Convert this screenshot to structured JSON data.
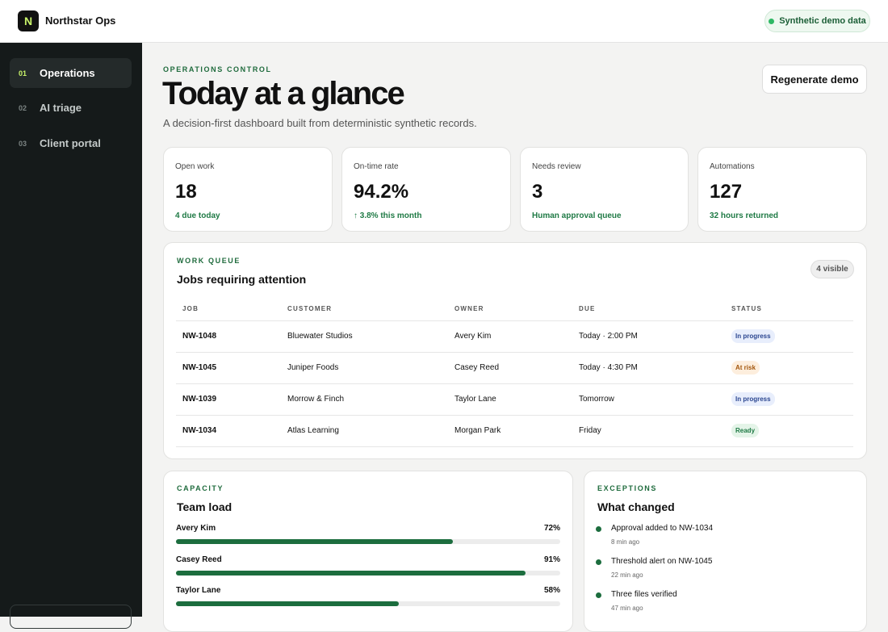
{
  "app": {
    "logo": "N",
    "name": "Northstar Ops",
    "badge": "Synthetic demo data"
  },
  "nav": [
    {
      "index": "01",
      "label": "Operations"
    },
    {
      "index": "02",
      "label": "AI triage"
    },
    {
      "index": "03",
      "label": "Client portal"
    }
  ],
  "header": {
    "eyebrow": "OPERATIONS CONTROL",
    "title": "Today at a glance",
    "subtitle": "A decision-first dashboard built from deterministic synthetic records.",
    "action": "Regenerate demo"
  },
  "kpis": [
    {
      "label": "Open work",
      "value": "18",
      "note": "4 due today"
    },
    {
      "label": "On-time rate",
      "value": "94.2%",
      "note": "↑ 3.8% this month"
    },
    {
      "label": "Needs review",
      "value": "3",
      "note": "Human approval queue"
    },
    {
      "label": "Automations",
      "value": "127",
      "note": "32 hours returned"
    }
  ],
  "queue": {
    "eyebrow": "WORK QUEUE",
    "title": "Jobs requiring attention",
    "badge": "4 visible",
    "columns": [
      "JOB",
      "CUSTOMER",
      "OWNER",
      "DUE",
      "STATUS"
    ],
    "rows": [
      [
        "NW-1048",
        "Bluewater Studios",
        "Avery Kim",
        "Today · 2:00 PM",
        "In progress"
      ],
      [
        "NW-1045",
        "Juniper Foods",
        "Casey Reed",
        "Today · 4:30 PM",
        "At risk"
      ],
      [
        "NW-1039",
        "Morrow & Finch",
        "Taylor Lane",
        "Tomorrow",
        "In progress"
      ],
      [
        "NW-1034",
        "Atlas Learning",
        "Morgan Park",
        "Friday",
        "Ready"
      ]
    ]
  },
  "capacity": {
    "eyebrow": "CAPACITY",
    "title": "Team load",
    "members": [
      {
        "name": "Avery Kim",
        "value": 72,
        "label": "72%"
      },
      {
        "name": "Casey Reed",
        "value": 91,
        "label": "91%"
      },
      {
        "name": "Taylor Lane",
        "value": 58,
        "label": "58%"
      }
    ]
  },
  "exceptions": {
    "eyebrow": "EXCEPTIONS",
    "title": "What changed",
    "items": [
      {
        "text": "Approval added to NW-1034",
        "time": "8 min ago"
      },
      {
        "text": "Threshold alert on NW-1045",
        "time": "22 min ago"
      },
      {
        "text": "Three files verified",
        "time": "47 min ago"
      }
    ]
  }
}
